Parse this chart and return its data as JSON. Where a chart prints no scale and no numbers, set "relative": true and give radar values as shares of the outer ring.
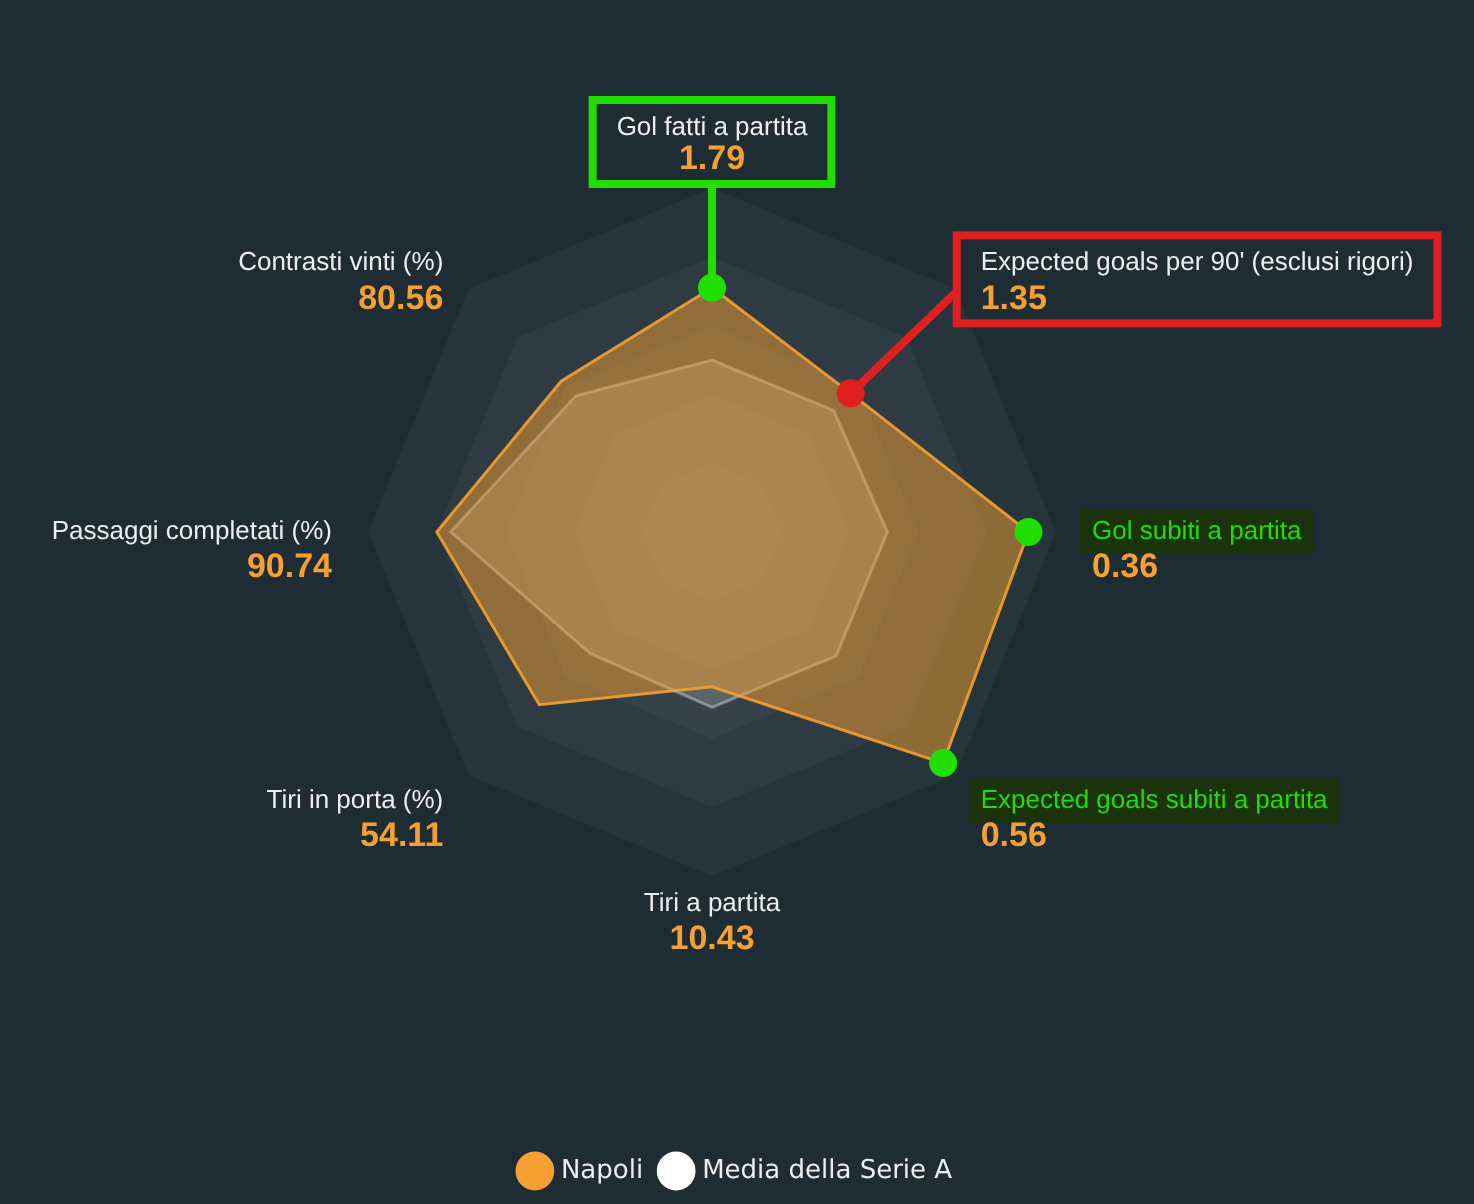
{
  "chart_data": {
    "type": "radar",
    "relative": true,
    "grid": true,
    "legend": "bottom",
    "marker": "none",
    "categories": [
      "Gol fatti a partita",
      "Expected goals per 90' (esclusi rigori)",
      "Gol subiti a partita",
      "Expected goals subiti a partita",
      "Tiri a partita",
      "Tiri in porta (%)",
      "Passaggi completati (%)",
      "Contrasti vinti (%)"
    ],
    "series": [
      {
        "name": "Napoli",
        "color": "#f5a030",
        "values": [
          0.71,
          0.57,
          0.92,
          0.95,
          0.45,
          0.71,
          0.8,
          0.62
        ]
      },
      {
        "name": "Media della Serie A",
        "color": "#ffffff",
        "values": [
          0.5,
          0.5,
          0.51,
          0.51,
          0.51,
          0.5,
          0.76,
          0.56
        ]
      }
    ],
    "annotations": [
      {
        "text": "1.79",
        "x": "Gol fatti a partita"
      },
      {
        "text": "1.35",
        "x": "Expected goals per 90' (esclusi rigori)"
      },
      {
        "text": "0.36",
        "x": "Gol subiti a partita"
      },
      {
        "text": "0.56",
        "x": "Expected goals subiti a partita"
      },
      {
        "text": "10.43",
        "x": "Tiri a partita"
      },
      {
        "text": "54.11",
        "x": "Tiri in porta (%)"
      },
      {
        "text": "90.74",
        "x": "Passaggi completati (%)"
      },
      {
        "text": "80.56",
        "x": "Contrasti vinti (%)"
      }
    ]
  }
}
